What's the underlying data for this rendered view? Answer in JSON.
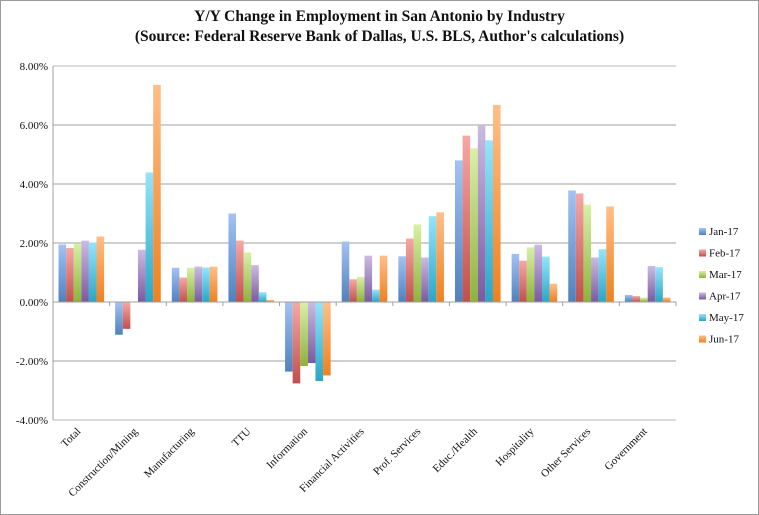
{
  "chart_data": {
    "type": "bar",
    "title": "Y/Y Change in Employment in San Antonio by Industry",
    "subtitle": "(Source: Federal Reserve Bank of Dallas, U.S. BLS, Author's calculations)",
    "xlabel": "",
    "ylabel": "",
    "ylim": [
      -4,
      8
    ],
    "yticks": [
      "8.00%",
      "6.00%",
      "4.00%",
      "2.00%",
      "0.00%",
      "-2.00%",
      "-4.00%"
    ],
    "ytick_values": [
      8,
      6,
      4,
      2,
      0,
      -2,
      -4
    ],
    "grid": true,
    "legend_position": "right",
    "categories": [
      "Total",
      "Construction/Mining",
      "Manufacturing",
      "TTU",
      "Information",
      "Financial Activities",
      "Prof. Services",
      "Educ./Health",
      "Hospitality",
      "Other Services",
      "Government"
    ],
    "series": [
      {
        "name": "Jan-17",
        "color": "#4f81bd",
        "light": "#a4c2f4",
        "values": [
          1.95,
          -1.11,
          1.16,
          3.0,
          -2.36,
          2.05,
          1.55,
          4.8,
          1.63,
          3.78,
          0.24
        ]
      },
      {
        "name": "Feb-17",
        "color": "#c0504d",
        "light": "#f7a8a4",
        "values": [
          1.83,
          -0.91,
          0.83,
          2.08,
          -2.76,
          0.77,
          2.15,
          5.64,
          1.4,
          3.68,
          0.2
        ]
      },
      {
        "name": "Mar-17",
        "color": "#8db33a",
        "light": "#d8f0a8",
        "values": [
          1.99,
          0,
          1.16,
          1.68,
          -2.17,
          0.85,
          2.63,
          5.21,
          1.85,
          3.3,
          0.15
        ]
      },
      {
        "name": "Apr-17",
        "color": "#7a5aa0",
        "light": "#cbbbe2",
        "values": [
          2.08,
          1.77,
          1.2,
          1.25,
          -2.07,
          1.57,
          1.51,
          6.0,
          1.94,
          1.51,
          1.22
        ]
      },
      {
        "name": "May-17",
        "color": "#2aa6c6",
        "light": "#95e4fa",
        "values": [
          2.02,
          4.39,
          1.17,
          0.33,
          -2.68,
          0.42,
          2.91,
          5.48,
          1.54,
          1.79,
          1.18
        ]
      },
      {
        "name": "Jun-17",
        "color": "#f0801e",
        "light": "#ffbf88",
        "values": [
          2.22,
          7.36,
          1.2,
          0.07,
          -2.49,
          1.57,
          3.04,
          6.68,
          0.62,
          3.24,
          0.15
        ]
      }
    ]
  }
}
